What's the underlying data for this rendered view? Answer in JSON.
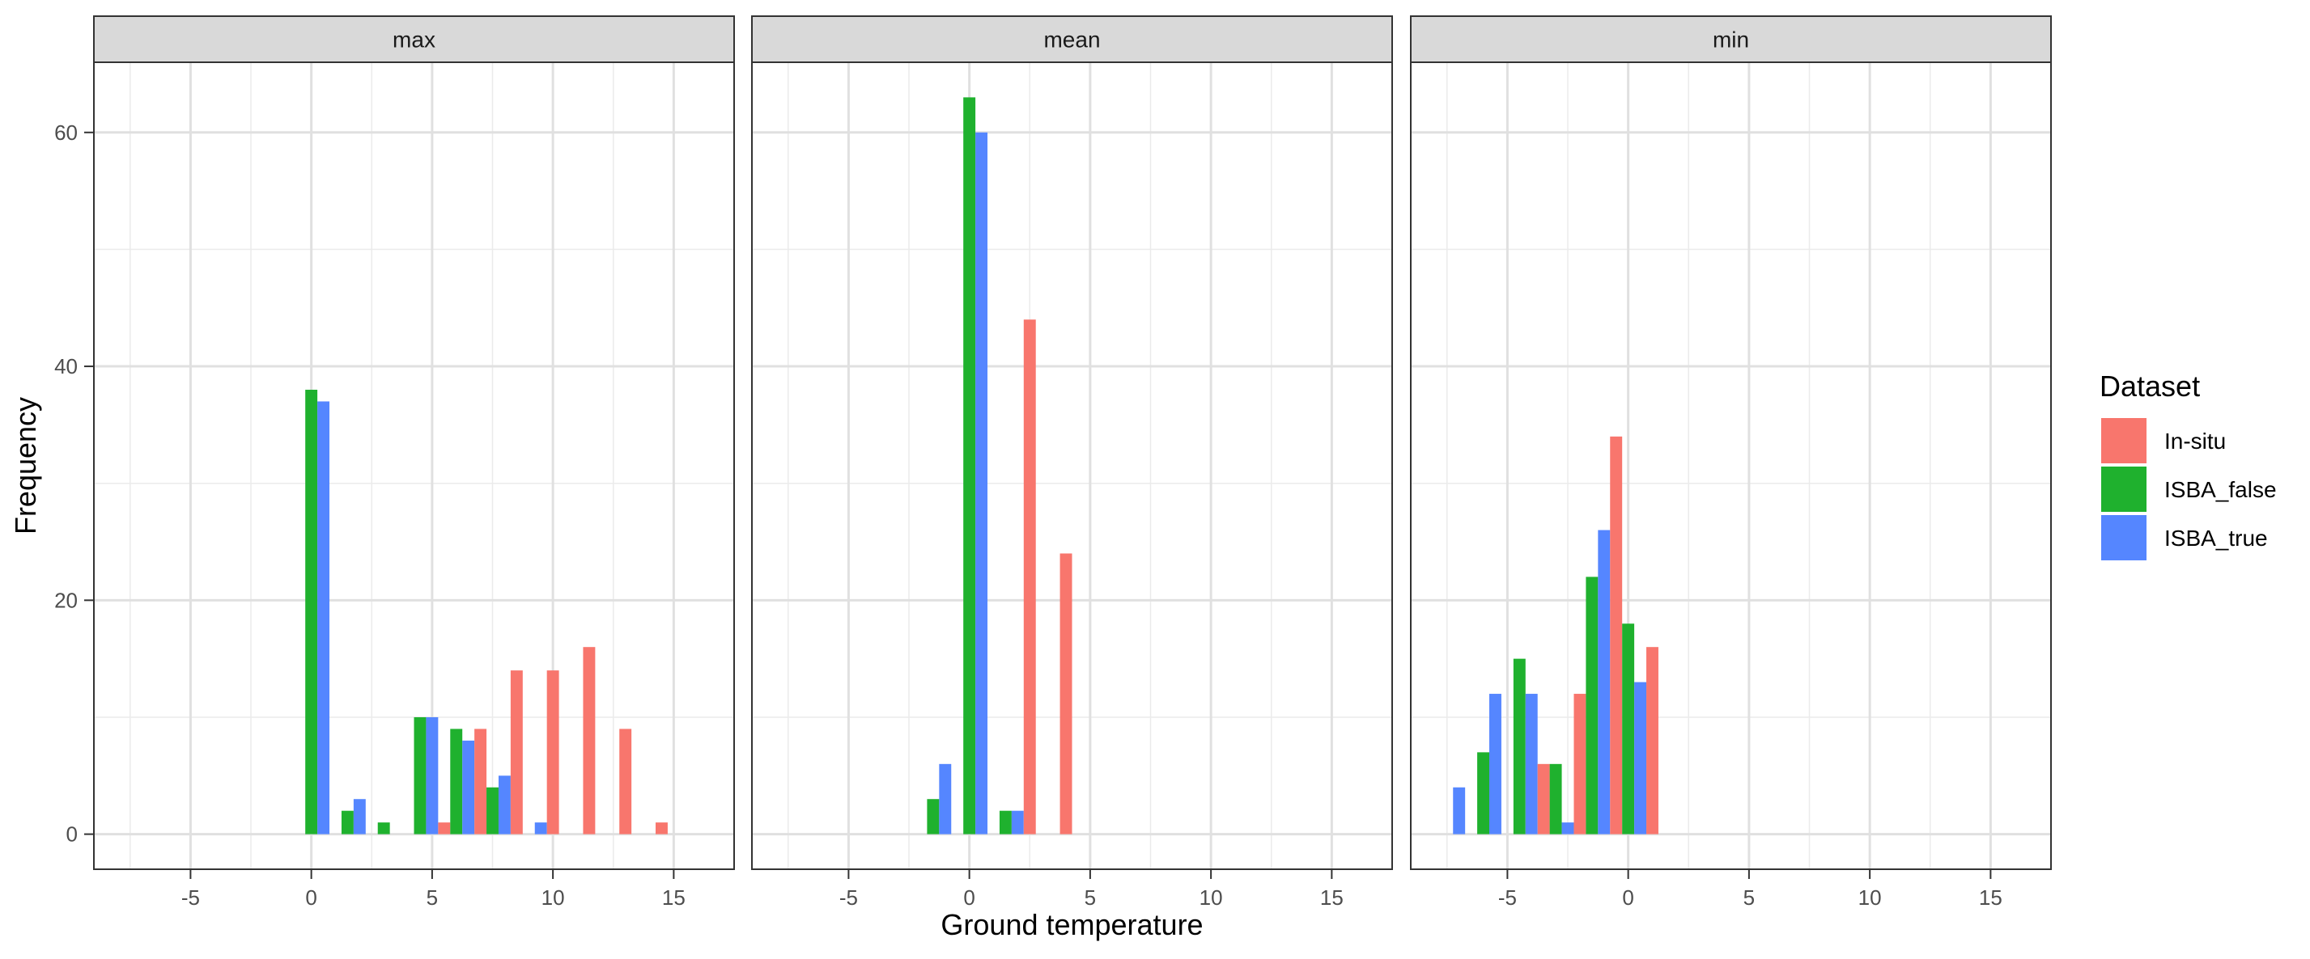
{
  "chart_data": {
    "type": "bar",
    "xlabel": "Ground temperature",
    "ylabel": "Frequency",
    "xlim": [
      -9,
      17.5
    ],
    "ylim": [
      -3,
      66
    ],
    "x_ticks": [
      -5,
      0,
      5,
      10,
      15
    ],
    "y_ticks": [
      0,
      20,
      40,
      60
    ],
    "grid": true,
    "legend": {
      "title": "Dataset",
      "position": "right",
      "entries": [
        "In-situ",
        "ISBA_false",
        "ISBA_true"
      ]
    },
    "colors": {
      "In-situ": "#F8766D",
      "ISBA_false": "#1FB12E",
      "ISBA_true": "#5586FF"
    },
    "panels": [
      {
        "name": "max",
        "groups": [
          {
            "x": 0,
            "values": {
              "In-situ": 0,
              "ISBA_false": 38,
              "ISBA_true": 37
            }
          },
          {
            "x": 1.5,
            "values": {
              "In-situ": 0,
              "ISBA_false": 2,
              "ISBA_true": 3
            }
          },
          {
            "x": 3,
            "values": {
              "In-situ": 0,
              "ISBA_false": 1,
              "ISBA_true": 0
            }
          },
          {
            "x": 4.5,
            "values": {
              "In-situ": 0,
              "ISBA_false": 10,
              "ISBA_true": 10
            }
          },
          {
            "x": 6,
            "values": {
              "In-situ": 1,
              "ISBA_false": 9,
              "ISBA_true": 8
            }
          },
          {
            "x": 7.5,
            "values": {
              "In-situ": 9,
              "ISBA_false": 4,
              "ISBA_true": 5
            }
          },
          {
            "x": 9,
            "values": {
              "In-situ": 14,
              "ISBA_false": 0,
              "ISBA_true": 1
            }
          },
          {
            "x": 10.5,
            "values": {
              "In-situ": 14,
              "ISBA_false": 0,
              "ISBA_true": 0
            }
          },
          {
            "x": 12,
            "values": {
              "In-situ": 16,
              "ISBA_false": 0,
              "ISBA_true": 0
            }
          },
          {
            "x": 13.5,
            "values": {
              "In-situ": 9,
              "ISBA_false": 0,
              "ISBA_true": 0
            }
          },
          {
            "x": 15,
            "values": {
              "In-situ": 1,
              "ISBA_false": 0,
              "ISBA_true": 0
            }
          }
        ]
      },
      {
        "name": "mean",
        "groups": [
          {
            "x": -1.5,
            "values": {
              "In-situ": 0,
              "ISBA_false": 3,
              "ISBA_true": 6
            }
          },
          {
            "x": 0,
            "values": {
              "In-situ": 0,
              "ISBA_false": 63,
              "ISBA_true": 60
            }
          },
          {
            "x": 1.5,
            "values": {
              "In-situ": 0,
              "ISBA_false": 2,
              "ISBA_true": 2
            }
          },
          {
            "x": 3,
            "values": {
              "In-situ": 44,
              "ISBA_false": 0,
              "ISBA_true": 0
            }
          },
          {
            "x": 4.5,
            "values": {
              "In-situ": 24,
              "ISBA_false": 0,
              "ISBA_true": 0
            }
          }
        ]
      },
      {
        "name": "min",
        "groups": [
          {
            "x": -7.5,
            "values": {
              "In-situ": 0,
              "ISBA_false": 0,
              "ISBA_true": 4
            }
          },
          {
            "x": -6,
            "values": {
              "In-situ": 0,
              "ISBA_false": 7,
              "ISBA_true": 12
            }
          },
          {
            "x": -4.5,
            "values": {
              "In-situ": 0,
              "ISBA_false": 15,
              "ISBA_true": 12
            }
          },
          {
            "x": -3,
            "values": {
              "In-situ": 6,
              "ISBA_false": 6,
              "ISBA_true": 1
            }
          },
          {
            "x": -1.5,
            "values": {
              "In-situ": 12,
              "ISBA_false": 22,
              "ISBA_true": 26
            }
          },
          {
            "x": 0,
            "values": {
              "In-situ": 34,
              "ISBA_false": 18,
              "ISBA_true": 13
            }
          },
          {
            "x": 1.5,
            "values": {
              "In-situ": 16,
              "ISBA_false": 0,
              "ISBA_true": 0
            }
          }
        ]
      }
    ]
  }
}
